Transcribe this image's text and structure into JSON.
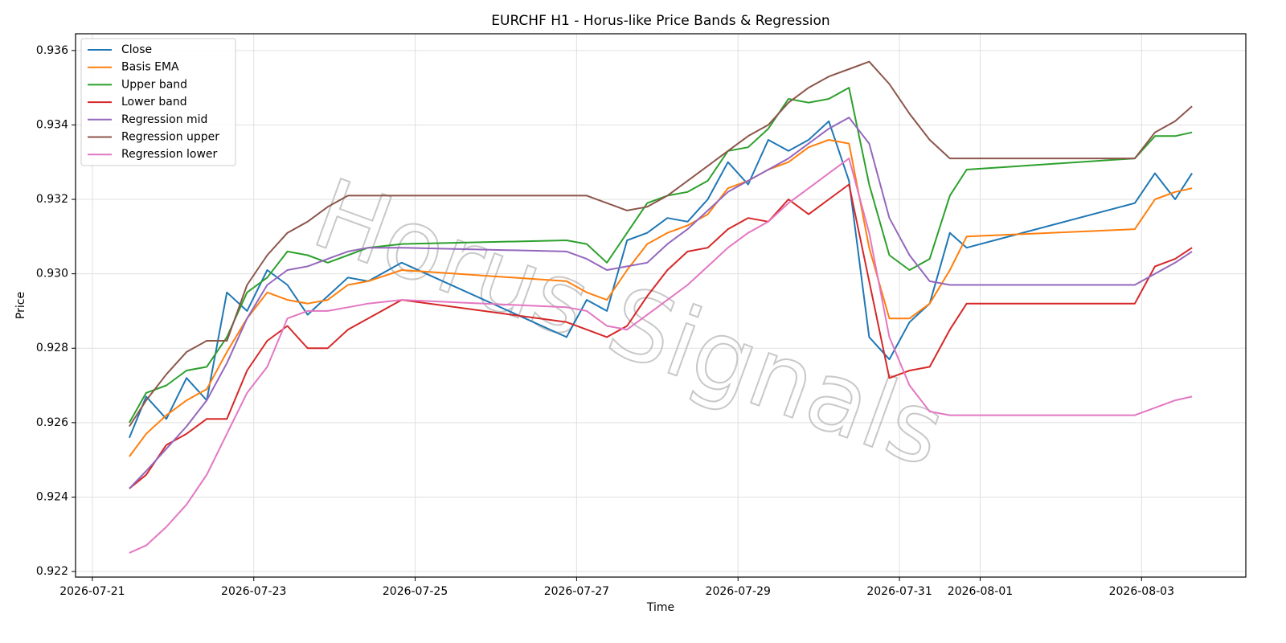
{
  "chart_data": {
    "type": "line",
    "title": "EURCHF H1 - Horus-like Price Bands & Regression",
    "xlabel": "Time",
    "ylabel": "Price",
    "watermark": "Horus Signals",
    "grid": true,
    "legend": "upper left",
    "x": [
      "2026-07-21T11:00",
      "2026-07-21T16:00",
      "2026-07-21T22:00",
      "2026-07-22T04:00",
      "2026-07-22T10:00",
      "2026-07-22T16:00",
      "2026-07-22T22:00",
      "2026-07-23T04:00",
      "2026-07-23T10:00",
      "2026-07-23T16:00",
      "2026-07-23T22:00",
      "2026-07-24T04:00",
      "2026-07-24T10:00",
      "2026-07-24T20:00",
      "2026-07-26T21:00",
      "2026-07-27T03:00",
      "2026-07-27T09:00",
      "2026-07-27T15:00",
      "2026-07-27T21:00",
      "2026-07-28T03:00",
      "2026-07-28T09:00",
      "2026-07-28T15:00",
      "2026-07-28T21:00",
      "2026-07-29T03:00",
      "2026-07-29T09:00",
      "2026-07-29T15:00",
      "2026-07-29T21:00",
      "2026-07-30T03:00",
      "2026-07-30T09:00",
      "2026-07-30T15:00",
      "2026-07-30T21:00",
      "2026-07-31T03:00",
      "2026-07-31T09:00",
      "2026-07-31T15:00",
      "2026-07-31T20:00",
      "2026-08-02T22:00",
      "2026-08-03T04:00",
      "2026-08-03T10:00",
      "2026-08-03T15:00"
    ],
    "xlim": [
      "2026-07-20T19:00",
      "2026-08-04T07:00"
    ],
    "xticks": [
      "2026-07-21",
      "2026-07-23",
      "2026-07-25",
      "2026-07-27",
      "2026-07-29",
      "2026-07-31",
      "2026-08-01",
      "2026-08-03"
    ],
    "ylim": [
      0.92185,
      0.93645
    ],
    "yticks": [
      0.922,
      0.924,
      0.926,
      0.928,
      {
        "value": 0.93,
        "label": "0.930"
      },
      0.932,
      0.934,
      0.936
    ],
    "series": [
      {
        "name": "Close",
        "color": "#1f77b4",
        "values": [
          0.92559,
          0.9267,
          0.9261,
          0.9272,
          0.9266,
          0.9295,
          0.929,
          0.9301,
          0.9297,
          0.9289,
          0.9294,
          0.9299,
          0.9298,
          0.9303,
          0.9283,
          0.9293,
          0.929,
          0.9309,
          0.9311,
          0.9315,
          0.9314,
          0.932,
          0.933,
          0.9324,
          0.9336,
          0.9333,
          0.9336,
          0.9341,
          0.9325,
          0.9283,
          0.9277,
          0.9287,
          0.9292,
          0.9311,
          0.9307,
          0.9319,
          0.9327,
          0.932,
          0.9327
        ]
      },
      {
        "name": "Basis EMA",
        "color": "#ff7f0e",
        "values": [
          0.92509,
          0.9257,
          0.9262,
          0.9266,
          0.9269,
          0.9279,
          0.9288,
          0.9295,
          0.9293,
          0.9292,
          0.9293,
          0.9297,
          0.9298,
          0.9301,
          0.9298,
          0.9295,
          0.9293,
          0.9301,
          0.9308,
          0.9311,
          0.9313,
          0.9316,
          0.9323,
          0.9325,
          0.9328,
          0.933,
          0.9334,
          0.9336,
          0.9335,
          0.9307,
          0.9288,
          0.9288,
          0.9292,
          0.9301,
          0.931,
          0.9312,
          0.932,
          0.9322,
          0.9323
        ]
      },
      {
        "name": "Upper band",
        "color": "#2ca02c",
        "values": [
          0.926,
          0.9268,
          0.927,
          0.9274,
          0.9275,
          0.9283,
          0.9295,
          0.9299,
          0.9306,
          0.9305,
          0.9303,
          0.9305,
          0.9307,
          0.9308,
          0.9309,
          0.9308,
          0.9303,
          0.9311,
          0.9319,
          0.9321,
          0.9322,
          0.9325,
          0.9333,
          0.9334,
          0.9339,
          0.9347,
          0.9346,
          0.9347,
          0.935,
          0.9324,
          0.9305,
          0.9301,
          0.9304,
          0.9321,
          0.9328,
          0.9331,
          0.9337,
          0.9337,
          0.9338
        ]
      },
      {
        "name": "Lower band",
        "color": "#d62728",
        "values": [
          0.92423,
          0.9246,
          0.9254,
          0.9257,
          0.9261,
          0.9261,
          0.9274,
          0.9282,
          0.9286,
          0.928,
          0.928,
          0.9285,
          0.9288,
          0.9293,
          0.9287,
          0.9285,
          0.9283,
          0.9286,
          0.9294,
          0.9301,
          0.9306,
          0.9307,
          0.9312,
          0.9315,
          0.9314,
          0.932,
          0.9316,
          0.932,
          0.9324,
          0.9298,
          0.9272,
          0.9274,
          0.9275,
          0.9285,
          0.9292,
          0.9292,
          0.9302,
          0.9304,
          0.9307
        ]
      },
      {
        "name": "Regression mid",
        "color": "#9467bd",
        "values": [
          0.92423,
          0.9247,
          0.9253,
          0.9259,
          0.9266,
          0.9276,
          0.9288,
          0.9297,
          0.9301,
          0.9302,
          0.9304,
          0.9306,
          0.9307,
          0.9307,
          0.9306,
          0.9304,
          0.9301,
          0.9302,
          0.9303,
          0.9308,
          0.9312,
          0.9317,
          0.9322,
          0.9325,
          0.9328,
          0.9331,
          0.9335,
          0.9339,
          0.9342,
          0.9335,
          0.9315,
          0.9305,
          0.9298,
          0.9297,
          0.9297,
          0.9297,
          0.93,
          0.9303,
          0.9306
        ]
      },
      {
        "name": "Regression upper",
        "color": "#8c564b",
        "values": [
          0.9259,
          0.9266,
          0.9273,
          0.9279,
          0.9282,
          0.9282,
          0.9297,
          0.9305,
          0.9311,
          0.9314,
          0.9318,
          0.9321,
          0.9321,
          0.9321,
          0.9321,
          0.9321,
          0.9319,
          0.9317,
          0.9318,
          0.9321,
          0.9325,
          0.9329,
          0.9333,
          0.9337,
          0.934,
          0.9346,
          0.935,
          0.9353,
          0.9355,
          0.9357,
          0.9351,
          0.9343,
          0.9336,
          0.9331,
          0.9331,
          0.9331,
          0.9338,
          0.9341,
          0.9345
        ]
      },
      {
        "name": "Regression lower",
        "color": "#e377c2",
        "values": [
          0.9225,
          0.9227,
          0.9232,
          0.9238,
          0.9246,
          0.9257,
          0.9268,
          0.9275,
          0.9288,
          0.929,
          0.929,
          0.9291,
          0.9292,
          0.9293,
          0.9291,
          0.929,
          0.9286,
          0.9285,
          0.9289,
          0.9293,
          0.9297,
          0.9302,
          0.9307,
          0.9311,
          0.9314,
          0.9319,
          0.9323,
          0.9327,
          0.9331,
          0.9311,
          0.9283,
          0.927,
          0.9263,
          0.9262,
          0.9262,
          0.9262,
          0.9264,
          0.9266,
          0.9267
        ]
      }
    ]
  }
}
